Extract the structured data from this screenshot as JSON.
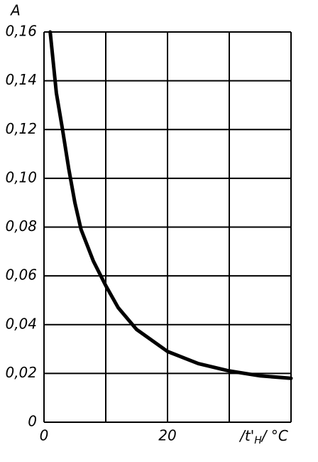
{
  "chart_data": {
    "type": "line",
    "title": "A",
    "xlabel": {
      "main": "/t'",
      "sub": "H",
      "rest": "/ °C"
    },
    "x": [
      1,
      2,
      3,
      4,
      5,
      6,
      8,
      10,
      12,
      15,
      20,
      25,
      30,
      35,
      40
    ],
    "series": [
      {
        "color": "#000000",
        "values": [
          0.16,
          0.135,
          0.12,
          0.104,
          0.09,
          0.079,
          0.066,
          0.056,
          0.047,
          0.038,
          0.029,
          0.024,
          0.021,
          0.019,
          0.018
        ]
      }
    ],
    "xlim": [
      0,
      40
    ],
    "ylim": [
      0,
      0.16
    ],
    "xticks": [
      0,
      20
    ],
    "xgrid": [
      0,
      10,
      20,
      30,
      40
    ],
    "yticks": [
      0,
      {
        "value": 0.02,
        "label": "0,02"
      },
      {
        "value": 0.04,
        "label": "0,04"
      },
      {
        "value": 0.06,
        "label": "0,06"
      },
      {
        "value": 0.08,
        "label": "0,08"
      },
      {
        "value": 0.1,
        "label": "0,10"
      },
      {
        "value": 0.12,
        "label": "0,12"
      },
      {
        "value": 0.14,
        "label": "0,14"
      },
      {
        "value": 0.16,
        "label": "0,16"
      }
    ],
    "grid": true
  }
}
